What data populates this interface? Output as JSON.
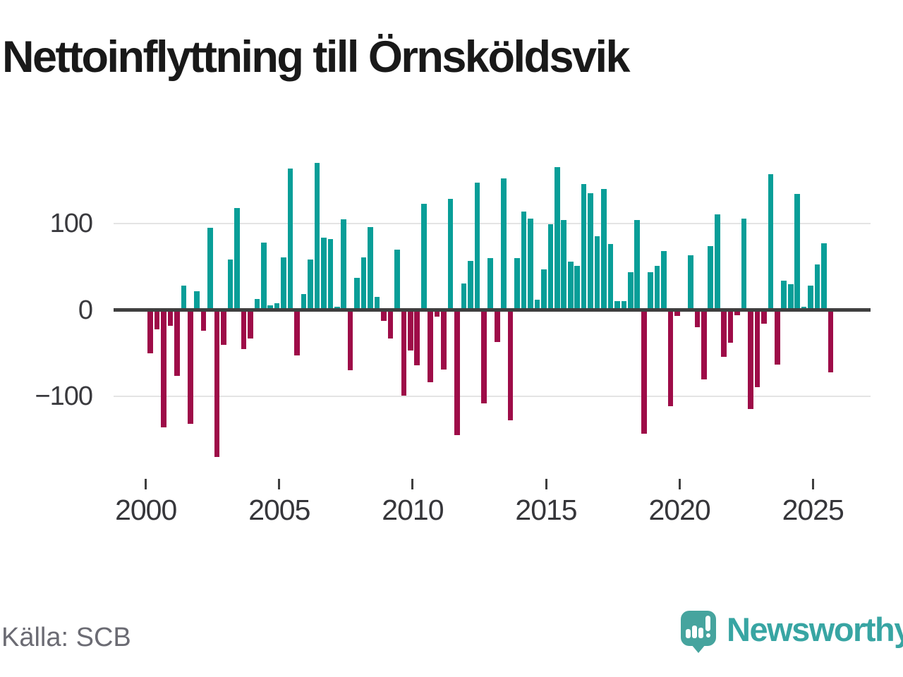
{
  "title": "Nettoinflyttning till Örnsköldsvik",
  "source_label": "Källa: SCB",
  "branding": {
    "name": "Newsworthy",
    "logo_icon": "speech-bubble-bar-chart-icon"
  },
  "colors": {
    "title_text": "#191919",
    "axis_line": "#3f3f3f",
    "gridline": "#e4e4e4",
    "tick_label": "#3a3a3e",
    "source_text": "#6b6b73",
    "brand_teal": "#38a5a3"
  },
  "chart_data": {
    "type": "bar",
    "title": "Nettoinflyttning till Örnsköldsvik",
    "frequency": "quarterly",
    "series_start": "2000-Q1",
    "series_end": "2025-Q3",
    "positive_color": "#089e98",
    "negative_color": "#9e0c48",
    "x_axis": {
      "tick_years": [
        2000,
        2005,
        2010,
        2015,
        2020,
        2025
      ],
      "tick_labels": [
        "2000",
        "2005",
        "2010",
        "2015",
        "2020",
        "2025"
      ]
    },
    "y_axis": {
      "ticks": [
        100,
        0,
        -100
      ],
      "tick_labels": [
        "100",
        "0",
        "−100"
      ],
      "ylim": [
        -180,
        180
      ],
      "gridlines": true
    },
    "years": [
      {
        "year": 2000,
        "values": [
          -50,
          -22,
          -136,
          -18
        ]
      },
      {
        "year": 2001,
        "values": [
          -76,
          28,
          -132,
          22
        ]
      },
      {
        "year": 2002,
        "values": [
          -24,
          95,
          -170,
          -40
        ]
      },
      {
        "year": 2003,
        "values": [
          58,
          118,
          -45,
          -33
        ]
      },
      {
        "year": 2004,
        "values": [
          13,
          78,
          5,
          8
        ]
      },
      {
        "year": 2005,
        "values": [
          61,
          164,
          -53,
          18
        ]
      },
      {
        "year": 2006,
        "values": [
          58,
          170,
          84,
          82
        ]
      },
      {
        "year": 2007,
        "values": [
          4,
          105,
          -70,
          37
        ]
      },
      {
        "year": 2008,
        "values": [
          61,
          96,
          15,
          -13
        ]
      },
      {
        "year": 2009,
        "values": [
          -33,
          70,
          -99,
          -47
        ]
      },
      {
        "year": 2010,
        "values": [
          -64,
          123,
          -84,
          -8
        ]
      },
      {
        "year": 2011,
        "values": [
          -69,
          129,
          -145,
          31
        ]
      },
      {
        "year": 2012,
        "values": [
          57,
          147,
          -108,
          60
        ]
      },
      {
        "year": 2013,
        "values": [
          -37,
          152,
          -128,
          60
        ]
      },
      {
        "year": 2014,
        "values": [
          114,
          106,
          12,
          47
        ]
      },
      {
        "year": 2015,
        "values": [
          99,
          165,
          104,
          56
        ]
      },
      {
        "year": 2016,
        "values": [
          51,
          146,
          135,
          85
        ]
      },
      {
        "year": 2017,
        "values": [
          140,
          76,
          10,
          10
        ]
      },
      {
        "year": 2018,
        "values": [
          44,
          104,
          -143,
          44
        ]
      },
      {
        "year": 2019,
        "values": [
          51,
          68,
          -111,
          -7
        ]
      },
      {
        "year": 2020,
        "values": [
          0,
          63,
          -20,
          -80
        ]
      },
      {
        "year": 2021,
        "values": [
          74,
          111,
          -54,
          -38
        ]
      },
      {
        "year": 2022,
        "values": [
          -6,
          106,
          -115,
          -89
        ]
      },
      {
        "year": 2023,
        "values": [
          -16,
          157,
          -63,
          34
        ]
      },
      {
        "year": 2024,
        "values": [
          30,
          134,
          4,
          28
        ]
      },
      {
        "year": 2025,
        "values": [
          53,
          77,
          -72
        ]
      }
    ]
  }
}
